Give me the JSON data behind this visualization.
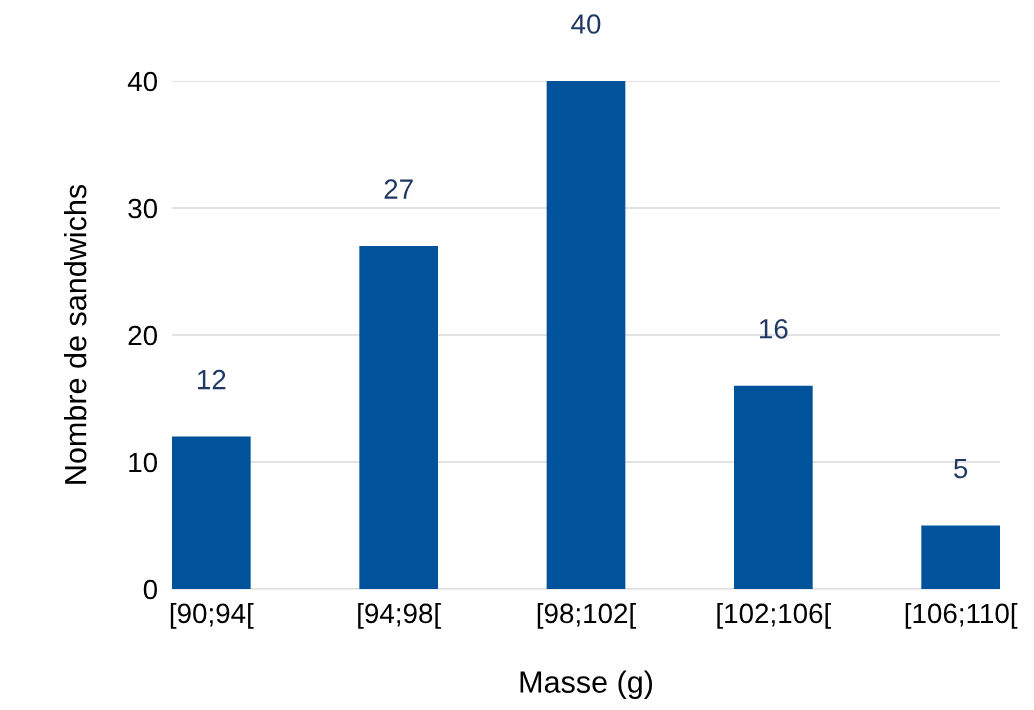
{
  "chart_data": {
    "type": "bar",
    "xlabel": "Masse (g)",
    "ylabel": "Nombre de sandwichs",
    "categories": [
      "[90;94[",
      "[94;98[",
      "[98;102[",
      "[102;106[",
      "[106;110["
    ],
    "values": [
      12,
      27,
      40,
      16,
      5
    ],
    "color": "#00529b",
    "ylim": [
      0,
      40
    ],
    "yticks": [
      0,
      10,
      20,
      30,
      40
    ],
    "grid": "y",
    "data_labels": true
  }
}
